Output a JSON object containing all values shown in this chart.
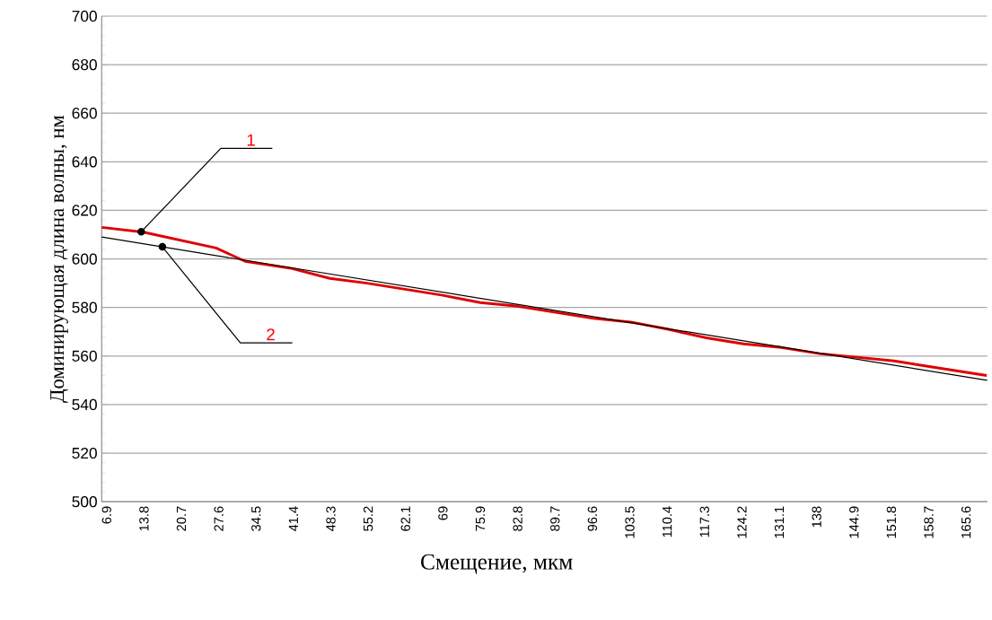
{
  "chart_data": {
    "type": "line",
    "xlabel": "Смещение, мкм",
    "ylabel": "Доминирующая длина волны, нм",
    "xlim": [
      6,
      169.5
    ],
    "ylim": [
      500,
      700
    ],
    "xticks": [
      6.9,
      13.8,
      20.7,
      27.6,
      34.5,
      41.4,
      48.3,
      55.2,
      62.1,
      69,
      75.9,
      82.8,
      89.7,
      96.6,
      103.5,
      110.4,
      117.3,
      124.2,
      131.1,
      138,
      144.9,
      151.8,
      158.7,
      165.6
    ],
    "yticks": [
      500,
      520,
      540,
      560,
      580,
      600,
      620,
      640,
      660,
      680,
      700
    ],
    "annotations": [
      {
        "text": "1",
        "x": 13.3,
        "y": 611.2
      },
      {
        "text": "2",
        "x": 17.2,
        "y": 605
      }
    ],
    "grid": "y",
    "marker": "none",
    "line_style": "solid",
    "series": [
      {
        "color": "#e00000",
        "x": [
          6,
          13.7,
          27.1,
          32.5,
          41.2,
          48.1,
          55,
          62,
          69,
          75.9,
          82.8,
          89.8,
          96.8,
          103.7,
          110.6,
          117.6,
          124.5,
          131.5,
          138.5,
          145.4,
          152.3,
          159.3,
          169.4
        ],
        "values": [
          613,
          611,
          604.5,
          599,
          596,
          592,
          590,
          587.5,
          585,
          582,
          580.5,
          578,
          575.5,
          574,
          571,
          567.5,
          565,
          563.5,
          561,
          559.5,
          558,
          555.5,
          552
        ]
      },
      {
        "color": "#000000",
        "x": [
          6,
          169.5
        ],
        "values": [
          609,
          550
        ]
      }
    ]
  }
}
